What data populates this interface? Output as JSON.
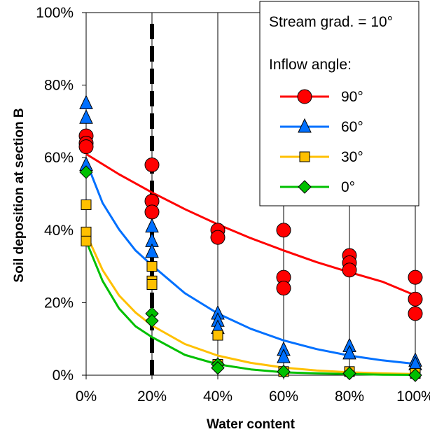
{
  "chart_data": {
    "type": "scatter",
    "title": "",
    "xlabel": "Water content",
    "ylabel": "Soil deposition at section B",
    "xlim": [
      0,
      100
    ],
    "ylim": [
      0,
      100
    ],
    "x_ticks": [
      "0%",
      "20%",
      "40%",
      "60%",
      "80%",
      "100%"
    ],
    "y_ticks": [
      "0%",
      "20%",
      "40%",
      "60%",
      "80%",
      "100%"
    ],
    "grid": "vertical",
    "legend_position": "top-right",
    "legend_title": "Stream grad. = 10°",
    "legend_subtitle": "Inflow angle:",
    "vertical_reference_line": {
      "x": 20,
      "style": "dashed",
      "color": "#000000"
    },
    "series": [
      {
        "name": "90°",
        "color": "#ff0000",
        "marker": "circle",
        "points": [
          [
            0,
            66
          ],
          [
            0,
            64
          ],
          [
            0,
            63
          ],
          [
            20,
            58
          ],
          [
            20,
            48
          ],
          [
            20,
            45
          ],
          [
            40,
            40
          ],
          [
            40,
            38
          ],
          [
            60,
            40
          ],
          [
            60,
            27
          ],
          [
            60,
            24
          ],
          [
            80,
            33
          ],
          [
            80,
            31
          ],
          [
            80,
            29
          ],
          [
            100,
            27
          ],
          [
            100,
            21
          ],
          [
            100,
            17
          ]
        ],
        "fit": [
          [
            0,
            61
          ],
          [
            10,
            55.4
          ],
          [
            20,
            50.4
          ],
          [
            30,
            45.8
          ],
          [
            40,
            41.6
          ],
          [
            50,
            37.8
          ],
          [
            60,
            34.4
          ],
          [
            70,
            31.2
          ],
          [
            80,
            28.4
          ],
          [
            90,
            25.8
          ],
          [
            100,
            22
          ]
        ]
      },
      {
        "name": "60°",
        "color": "#0070ff",
        "marker": "triangle",
        "points": [
          [
            0,
            75
          ],
          [
            0,
            71
          ],
          [
            0,
            58
          ],
          [
            20,
            41
          ],
          [
            20,
            37
          ],
          [
            20,
            34
          ],
          [
            40,
            17
          ],
          [
            40,
            15
          ],
          [
            40,
            13
          ],
          [
            60,
            7
          ],
          [
            60,
            5
          ],
          [
            80,
            8
          ],
          [
            80,
            6
          ],
          [
            100,
            4
          ],
          [
            100,
            3
          ]
        ],
        "fit": [
          [
            0,
            59
          ],
          [
            5,
            47.5
          ],
          [
            10,
            40.2
          ],
          [
            15,
            34.4
          ],
          [
            20,
            30.3
          ],
          [
            30,
            22.6
          ],
          [
            40,
            17
          ],
          [
            50,
            12.8
          ],
          [
            60,
            9.6
          ],
          [
            70,
            7.2
          ],
          [
            80,
            5.4
          ],
          [
            90,
            4.1
          ],
          [
            100,
            3.1
          ]
        ]
      },
      {
        "name": "30°",
        "color": "#ffc000",
        "marker": "square",
        "points": [
          [
            0,
            47
          ],
          [
            0,
            39.5
          ],
          [
            0,
            37
          ],
          [
            20,
            30
          ],
          [
            20,
            26
          ],
          [
            20,
            25
          ],
          [
            40,
            11
          ],
          [
            40,
            3
          ],
          [
            60,
            1
          ],
          [
            80,
            1
          ],
          [
            100,
            0.5
          ]
        ],
        "fit": [
          [
            0,
            39
          ],
          [
            5,
            29
          ],
          [
            10,
            22
          ],
          [
            15,
            17.3
          ],
          [
            20,
            13.7
          ],
          [
            30,
            8.6
          ],
          [
            40,
            5.4
          ],
          [
            50,
            3.4
          ],
          [
            60,
            2.1
          ],
          [
            70,
            1.3
          ],
          [
            80,
            0.8
          ],
          [
            90,
            0.5
          ],
          [
            100,
            0.3
          ]
        ]
      },
      {
        "name": "0°",
        "color": "#00c000",
        "marker": "diamond",
        "points": [
          [
            0,
            56
          ],
          [
            20,
            17
          ],
          [
            20,
            15
          ],
          [
            40,
            3
          ],
          [
            40,
            2
          ],
          [
            60,
            1
          ],
          [
            80,
            0.5
          ],
          [
            100,
            0
          ]
        ],
        "fit": [
          [
            0,
            37
          ],
          [
            5,
            26
          ],
          [
            10,
            18.4
          ],
          [
            15,
            13.5
          ],
          [
            20,
            10.5
          ],
          [
            30,
            5.6
          ],
          [
            40,
            3
          ],
          [
            50,
            1.6
          ],
          [
            60,
            0.8
          ],
          [
            70,
            0.5
          ],
          [
            80,
            0.3
          ],
          [
            90,
            0.15
          ],
          [
            100,
            0.1
          ]
        ]
      }
    ]
  }
}
